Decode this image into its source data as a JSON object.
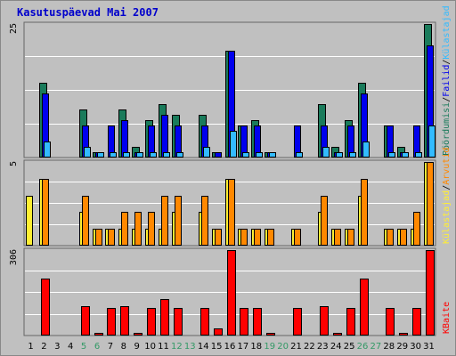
{
  "chart_data": {
    "type": "bar",
    "title": "Kasutuspäevad Mai 2007",
    "categories": [
      "1",
      "2",
      "3",
      "4",
      "5",
      "6",
      "7",
      "8",
      "9",
      "10",
      "11",
      "12",
      "13",
      "14",
      "15",
      "16",
      "17",
      "18",
      "19",
      "20",
      "21",
      "22",
      "23",
      "24",
      "25",
      "26",
      "27",
      "28",
      "29",
      "30",
      "31"
    ],
    "weekend_days": [
      "5",
      "6",
      "12",
      "13",
      "19",
      "20",
      "26",
      "27"
    ],
    "colors": {
      "title": "#0000cc",
      "frame": "#888888",
      "plot_bg": "#c0c0c0",
      "grid": "#ffffff",
      "weekday_label": "#000000",
      "weekend_label": "#339966",
      "visits": "#1a7b5b",
      "pages": "#0000ee",
      "files": "#33bbff",
      "hits": "#ffee33",
      "sites": "#ff8800",
      "kbytes": "#ff0000"
    },
    "panels": [
      {
        "name": "top",
        "ymax": 25,
        "ymax_label": "25",
        "legend": [
          {
            "text": "Pöördumisi",
            "color": "#1a7b5b"
          },
          {
            "text": "/",
            "color": "#000000"
          },
          {
            "text": "Failid",
            "color": "#0000ee"
          },
          {
            "text": "/",
            "color": "#000000"
          },
          {
            "text": "Külastajad",
            "color": "#33bbff"
          }
        ],
        "series": [
          {
            "key": "visits",
            "values": [
              0,
              14,
              0,
              0,
              9,
              1,
              0,
              9,
              2,
              7,
              10,
              8,
              0,
              8,
              1,
              20,
              6,
              7,
              1,
              0,
              0,
              0,
              10,
              2,
              7,
              14,
              0,
              6,
              2,
              0,
              25
            ]
          },
          {
            "key": "pages",
            "values": [
              0,
              12,
              0,
              0,
              6,
              1,
              6,
              7,
              1,
              6,
              8,
              6,
              0,
              6,
              1,
              20,
              6,
              6,
              1,
              0,
              6,
              0,
              6,
              1,
              6,
              12,
              0,
              6,
              1,
              6,
              21
            ]
          },
          {
            "key": "files",
            "values": [
              0,
              3,
              0,
              0,
              2,
              1,
              1,
              1,
              1,
              1,
              1,
              1,
              0,
              2,
              0,
              5,
              1,
              1,
              1,
              0,
              1,
              0,
              2,
              1,
              1,
              3,
              0,
              1,
              1,
              1,
              6
            ]
          }
        ]
      },
      {
        "name": "middle",
        "ymax": 5,
        "ymax_label": "5",
        "legend": [
          {
            "text": "Külastajad",
            "color": "#ffee33"
          },
          {
            "text": "/",
            "color": "#000000"
          },
          {
            "text": "Arvutid",
            "color": "#ff8800"
          }
        ],
        "series": [
          {
            "key": "hits",
            "values": [
              3,
              4,
              0,
              0,
              2,
              1,
              1,
              1,
              1,
              1,
              1,
              2,
              0,
              2,
              1,
              4,
              1,
              1,
              1,
              0,
              1,
              0,
              2,
              1,
              1,
              3,
              0,
              1,
              1,
              1,
              5
            ]
          },
          {
            "key": "sites",
            "values": [
              0,
              4,
              0,
              0,
              3,
              1,
              1,
              2,
              2,
              2,
              3,
              3,
              0,
              3,
              1,
              4,
              1,
              1,
              1,
              0,
              1,
              0,
              3,
              1,
              1,
              4,
              0,
              1,
              1,
              2,
              5
            ]
          }
        ]
      },
      {
        "name": "bottom",
        "ymax": 306,
        "ymax_label": "306",
        "legend": [
          {
            "text": "KBaite",
            "color": "#ff0000"
          }
        ],
        "series": [
          {
            "key": "kbytes",
            "values": [
              0,
              205,
              0,
              0,
              105,
              10,
              100,
              105,
              10,
              100,
              130,
              100,
              0,
              100,
              25,
              306,
              100,
              100,
              10,
              0,
              100,
              0,
              105,
              10,
              100,
              205,
              0,
              100,
              10,
              100,
              306
            ]
          }
        ]
      }
    ]
  }
}
